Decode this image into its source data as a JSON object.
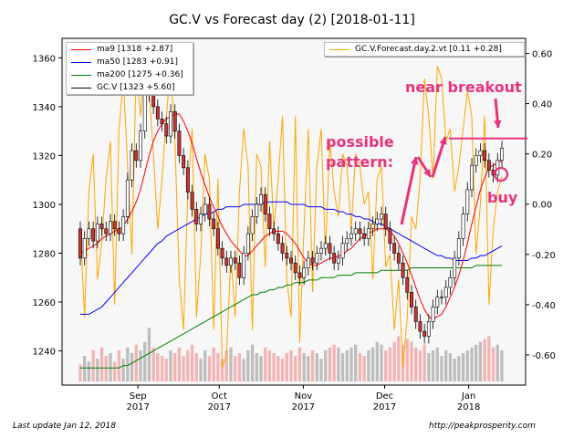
{
  "chart_data": {
    "type": "candlestick",
    "title": "GC.V vs Forecast day (2)  [2018-01-11]",
    "x_ticks": [
      {
        "label": "Sep\n2017",
        "date": "2017-09-01"
      },
      {
        "label": "Oct\n2017",
        "date": "2017-10-01"
      },
      {
        "label": "Nov\n2017",
        "date": "2017-11-01"
      },
      {
        "label": "Dec\n2017",
        "date": "2017-12-01"
      },
      {
        "label": "Jan\n2018",
        "date": "2018-01-01"
      }
    ],
    "xlim": [
      "2017-08-04",
      "2018-01-22"
    ],
    "y_left": {
      "ylim": [
        1226,
        1368
      ],
      "ticks": [
        1240,
        1260,
        1280,
        1300,
        1320,
        1340,
        1360
      ]
    },
    "y_right": {
      "ylim": [
        -0.72,
        0.66
      ],
      "ticks": [
        "-0.60",
        "-0.40",
        "-0.20",
        "0.00",
        "0.20",
        "0.40",
        "0.60"
      ]
    },
    "grid": false,
    "legend_left": [
      {
        "label": "ma9 [1318 +2.87]",
        "color": "#ff0000"
      },
      {
        "label": "ma50 [1283 +0.91]",
        "color": "#0000ff"
      },
      {
        "label": "ma200 [1275 +0.36]",
        "color": "#008000"
      },
      {
        "label": "GC.V [1323 +5.60]",
        "color": "#000000"
      }
    ],
    "legend_right": [
      {
        "label": "GC.V.Forecast.day.2.vt [0.11 +0.28]",
        "color": "#ffa500"
      }
    ],
    "annotations": {
      "pattern_line1": "possible",
      "pattern_line2": "pattern:",
      "breakout": "near breakout",
      "buy": "buy",
      "breakout_level": 1327
    },
    "closes": [
      1278,
      1286,
      1290,
      1285,
      1292,
      1290,
      1288,
      1293,
      1290,
      1288,
      1295,
      1310,
      1322,
      1318,
      1330,
      1345,
      1350,
      1340,
      1335,
      1333,
      1328,
      1338,
      1330,
      1320,
      1315,
      1305,
      1298,
      1292,
      1296,
      1300,
      1294,
      1290,
      1282,
      1278,
      1275,
      1278,
      1276,
      1270,
      1280,
      1288,
      1295,
      1300,
      1304,
      1296,
      1290,
      1288,
      1284,
      1280,
      1278,
      1276,
      1272,
      1270,
      1274,
      1278,
      1276,
      1280,
      1282,
      1284,
      1280,
      1276,
      1278,
      1284,
      1286,
      1288,
      1290,
      1288,
      1286,
      1290,
      1292,
      1294,
      1296,
      1290,
      1284,
      1280,
      1276,
      1270,
      1264,
      1258,
      1252,
      1248,
      1246,
      1252,
      1258,
      1262,
      1262,
      1266,
      1270,
      1278,
      1286,
      1296,
      1306,
      1316,
      1320,
      1322,
      1318,
      1314,
      1312,
      1318,
      1323
    ],
    "opens": [
      1290,
      1278,
      1286,
      1290,
      1285,
      1292,
      1290,
      1288,
      1293,
      1290,
      1288,
      1295,
      1310,
      1322,
      1318,
      1330,
      1345,
      1350,
      1340,
      1335,
      1333,
      1328,
      1338,
      1330,
      1320,
      1315,
      1305,
      1298,
      1292,
      1296,
      1300,
      1294,
      1290,
      1282,
      1278,
      1275,
      1278,
      1276,
      1270,
      1280,
      1288,
      1295,
      1300,
      1304,
      1296,
      1290,
      1288,
      1284,
      1280,
      1278,
      1276,
      1272,
      1270,
      1274,
      1278,
      1276,
      1280,
      1282,
      1284,
      1280,
      1276,
      1278,
      1284,
      1286,
      1288,
      1290,
      1288,
      1286,
      1290,
      1292,
      1294,
      1296,
      1290,
      1284,
      1280,
      1276,
      1270,
      1264,
      1258,
      1252,
      1248,
      1246,
      1252,
      1258,
      1262,
      1262,
      1266,
      1270,
      1278,
      1286,
      1296,
      1306,
      1316,
      1320,
      1322,
      1318,
      1314,
      1312,
      1318
    ],
    "ma9": [
      1280,
      1281,
      1282,
      1283,
      1284,
      1286,
      1287,
      1288,
      1289,
      1290,
      1291,
      1294,
      1297,
      1301,
      1306,
      1313,
      1320,
      1326,
      1330,
      1333,
      1335,
      1336,
      1337,
      1337,
      1334,
      1330,
      1325,
      1319,
      1313,
      1308,
      1303,
      1299,
      1295,
      1291,
      1288,
      1285,
      1283,
      1281,
      1279,
      1279,
      1281,
      1283,
      1285,
      1287,
      1288,
      1289,
      1289,
      1289,
      1288,
      1286,
      1284,
      1281,
      1278,
      1276,
      1275,
      1275,
      1276,
      1277,
      1278,
      1278,
      1279,
      1279,
      1281,
      1282,
      1284,
      1286,
      1287,
      1288,
      1289,
      1290,
      1290,
      1290,
      1289,
      1287,
      1284,
      1280,
      1276,
      1271,
      1266,
      1261,
      1257,
      1254,
      1253,
      1254,
      1255,
      1258,
      1262,
      1266,
      1271,
      1277,
      1284,
      1292,
      1299,
      1306,
      1311,
      1315,
      1316,
      1317,
      1318
    ],
    "ma50": [
      1255,
      1255,
      1255,
      1256,
      1257,
      1258,
      1260,
      1262,
      1264,
      1266,
      1268,
      1270,
      1272,
      1274,
      1276,
      1278,
      1280,
      1282,
      1284,
      1285,
      1287,
      1288,
      1289,
      1290,
      1291,
      1292,
      1293,
      1294,
      1295,
      1296,
      1296,
      1297,
      1298,
      1298,
      1299,
      1299,
      1299,
      1299,
      1300,
      1300,
      1300,
      1300,
      1300,
      1301,
      1301,
      1301,
      1301,
      1301,
      1301,
      1300,
      1300,
      1300,
      1300,
      1299,
      1299,
      1299,
      1299,
      1298,
      1298,
      1298,
      1297,
      1297,
      1296,
      1296,
      1295,
      1295,
      1294,
      1294,
      1293,
      1292,
      1292,
      1291,
      1290,
      1289,
      1288,
      1287,
      1286,
      1285,
      1284,
      1283,
      1282,
      1281,
      1280,
      1279,
      1279,
      1278,
      1278,
      1277,
      1277,
      1277,
      1277,
      1278,
      1278,
      1279,
      1279,
      1280,
      1281,
      1282,
      1283
    ],
    "ma200": [
      1233,
      1233,
      1233,
      1233,
      1233,
      1233,
      1233,
      1233,
      1233,
      1233,
      1234,
      1234,
      1235,
      1236,
      1237,
      1238,
      1239,
      1240,
      1241,
      1242,
      1243,
      1244,
      1245,
      1246,
      1247,
      1248,
      1249,
      1250,
      1251,
      1252,
      1253,
      1254,
      1255,
      1256,
      1257,
      1258,
      1259,
      1260,
      1261,
      1262,
      1263,
      1263,
      1264,
      1264,
      1265,
      1265,
      1266,
      1266,
      1267,
      1267,
      1268,
      1268,
      1268,
      1269,
      1269,
      1269,
      1270,
      1270,
      1270,
      1270,
      1271,
      1271,
      1271,
      1271,
      1272,
      1272,
      1272,
      1272,
      1272,
      1272,
      1273,
      1273,
      1273,
      1273,
      1273,
      1273,
      1273,
      1274,
      1274,
      1274,
      1274,
      1274,
      1274,
      1274,
      1274,
      1274,
      1274,
      1274,
      1274,
      1274,
      1274,
      1274,
      1275,
      1275,
      1275,
      1275,
      1275,
      1275,
      1275
    ],
    "forecast": [
      -0.1,
      -0.45,
      0.05,
      0.2,
      -0.3,
      -0.15,
      0.1,
      0.25,
      -0.4,
      0.3,
      0.5,
      0.15,
      -0.2,
      0.55,
      0.35,
      0.6,
      0.45,
      0.2,
      -0.1,
      0.1,
      0.35,
      0.55,
      0.25,
      -0.3,
      -0.5,
      0.05,
      0.3,
      -0.45,
      -0.2,
      0.2,
      0.1,
      -0.5,
      0.1,
      -0.65,
      -0.6,
      -0.2,
      -0.45,
      0.05,
      0.3,
      0.15,
      -0.5,
      0.2,
      0.15,
      -0.25,
      0.25,
      -0.1,
      0.1,
      0.35,
      -0.3,
      -0.45,
      0.35,
      -0.55,
      -0.1,
      0.3,
      -0.35,
      0.15,
      0.3,
      -0.2,
      0.25,
      0.05,
      -0.05,
      0.2,
      0.15,
      -0.1,
      0.2,
      0.15,
      0.0,
      0.05,
      -0.3,
      0.1,
      0.15,
      -0.25,
      -0.2,
      -0.5,
      -0.3,
      -0.65,
      -0.45,
      -0.05,
      -0.1,
      0.1,
      0.5,
      0.35,
      0.1,
      0.55,
      0.5,
      0.25,
      0.3,
      0.05,
      0.15,
      0.3,
      0.45,
      0.35,
      -0.2,
      0.0,
      0.35,
      -0.4,
      -0.1,
      0.05,
      0.11
    ],
    "volume": [
      0.3,
      0.45,
      0.35,
      0.55,
      0.4,
      0.6,
      0.45,
      0.5,
      0.35,
      0.55,
      0.4,
      0.6,
      0.5,
      0.65,
      0.55,
      0.7,
      0.95,
      0.6,
      0.5,
      0.45,
      0.4,
      0.55,
      0.5,
      0.6,
      0.45,
      0.55,
      0.65,
      0.5,
      0.4,
      0.55,
      0.45,
      0.6,
      0.5,
      0.4,
      0.55,
      0.6,
      0.45,
      0.5,
      0.4,
      0.55,
      0.65,
      0.5,
      0.45,
      0.6,
      0.55,
      0.5,
      0.45,
      0.4,
      0.5,
      0.55,
      0.45,
      0.6,
      0.5,
      0.45,
      0.55,
      0.5,
      0.4,
      0.55,
      0.6,
      0.65,
      0.6,
      0.5,
      0.55,
      0.6,
      0.65,
      0.5,
      0.45,
      0.55,
      0.6,
      0.7,
      0.65,
      0.55,
      0.6,
      0.7,
      0.8,
      0.65,
      0.75,
      0.7,
      0.6,
      0.55,
      0.65,
      0.5,
      0.55,
      0.6,
      0.45,
      0.55,
      0.5,
      0.4,
      0.45,
      0.5,
      0.55,
      0.6,
      0.65,
      0.7,
      0.75,
      0.8,
      0.6,
      0.65,
      0.55
    ]
  },
  "footer": {
    "left": "Last update Jan 12, 2018",
    "right": "http://peakprosperity.com"
  }
}
